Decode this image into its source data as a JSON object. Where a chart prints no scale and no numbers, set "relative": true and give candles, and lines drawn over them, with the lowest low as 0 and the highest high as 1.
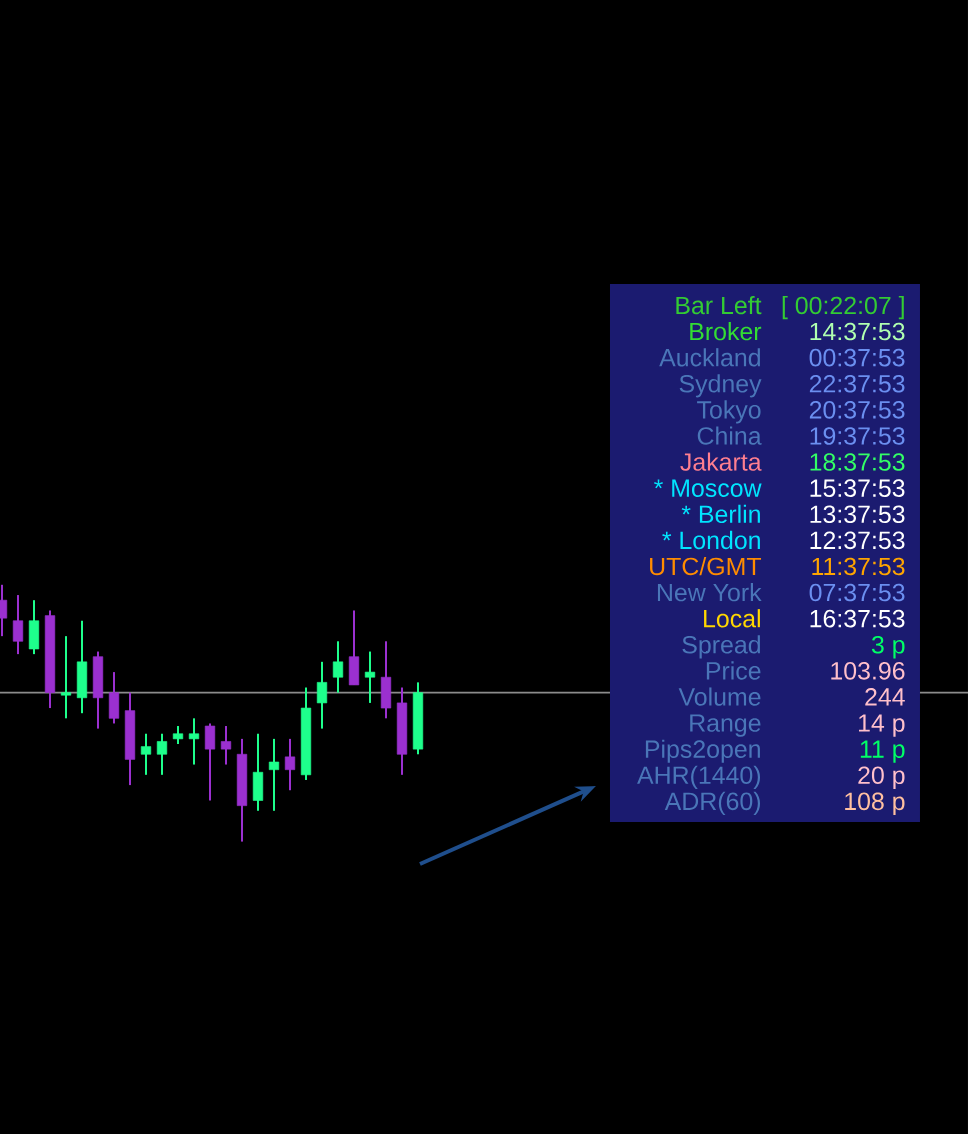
{
  "chart_data": [
    {
      "type": "candlestick",
      "relative": true,
      "categories": [
        null,
        null,
        null,
        null,
        null,
        null,
        null,
        null,
        null,
        null,
        null,
        null,
        null,
        null,
        null,
        null,
        null,
        null,
        null,
        null,
        null,
        null,
        null,
        null,
        null,
        null,
        null
      ],
      "ohlc": [
        [
          0.94,
          1.0,
          0.8,
          0.87
        ],
        [
          0.86,
          0.96,
          0.73,
          0.78
        ],
        [
          0.75,
          0.94,
          0.73,
          0.86
        ],
        [
          0.88,
          0.9,
          0.52,
          0.58
        ],
        [
          0.57,
          0.8,
          0.48,
          0.58
        ],
        [
          0.56,
          0.86,
          0.5,
          0.7
        ],
        [
          0.72,
          0.74,
          0.44,
          0.56
        ],
        [
          0.58,
          0.66,
          0.46,
          0.48
        ],
        [
          0.51,
          0.58,
          0.22,
          0.32
        ],
        [
          0.34,
          0.42,
          0.26,
          0.37
        ],
        [
          0.34,
          0.42,
          0.26,
          0.39
        ],
        [
          0.4,
          0.45,
          0.38,
          0.42
        ],
        [
          0.4,
          0.48,
          0.3,
          0.42
        ],
        [
          0.45,
          0.46,
          0.16,
          0.36
        ],
        [
          0.39,
          0.45,
          0.3,
          0.36
        ],
        [
          0.34,
          0.4,
          0.0,
          0.14
        ],
        [
          0.16,
          0.42,
          0.12,
          0.27
        ],
        [
          0.28,
          0.4,
          0.12,
          0.31
        ],
        [
          0.33,
          0.4,
          0.2,
          0.28
        ],
        [
          0.26,
          0.6,
          0.24,
          0.52
        ],
        [
          0.54,
          0.7,
          0.44,
          0.62
        ],
        [
          0.64,
          0.78,
          0.58,
          0.7
        ],
        [
          0.72,
          0.9,
          0.61,
          0.61
        ],
        [
          0.64,
          0.74,
          0.54,
          0.66
        ],
        [
          0.64,
          0.78,
          0.48,
          0.52
        ],
        [
          0.54,
          0.6,
          0.26,
          0.34
        ],
        [
          0.36,
          0.62,
          0.34,
          0.58
        ]
      ],
      "colors": [
        "#9b30d0",
        "#9b30d0",
        "#1eff8c",
        "#9b30d0",
        "#1eff8c",
        "#1eff8c",
        "#9b30d0",
        "#9b30d0",
        "#9b30d0",
        "#1eff8c",
        "#1eff8c",
        "#1eff8c",
        "#1eff8c",
        "#9b30d0",
        "#9b30d0",
        "#9b30d0",
        "#1eff8c",
        "#1eff8c",
        "#9b30d0",
        "#1eff8c",
        "#1eff8c",
        "#1eff8c",
        "#9b30d0",
        "#1eff8c",
        "#9b30d0",
        "#9b30d0",
        "#1eff8c"
      ],
      "ref_lines": [
        {
          "axis": "y",
          "value": 0.58,
          "color": "#8c8c8c"
        }
      ]
    },
    {
      "type": "other",
      "color": "#1b1b70",
      "categories": [
        "Bar Left",
        "Broker",
        "Auckland",
        "Sydney",
        "Tokyo",
        "China",
        "Jakarta",
        "* Moscow",
        "* Berlin",
        "* London",
        "UTC/GMT",
        "New York",
        "Local",
        "Spread",
        "Price",
        "Volume",
        "Range",
        "Pips2open",
        "AHR(1440)",
        "ADR(60)"
      ],
      "value_labels": [
        "[ 00:22:07 ]",
        "14:37:53",
        "00:37:53",
        "22:37:53",
        "20:37:53",
        "19:37:53",
        "18:37:53",
        "15:37:53",
        "13:37:53",
        "12:37:53",
        "11:37:53",
        "07:37:53",
        "16:37:53",
        "3 p",
        "103.96",
        "244",
        "14 p",
        "11 p",
        "20 p",
        "108 p"
      ]
    }
  ]
}
